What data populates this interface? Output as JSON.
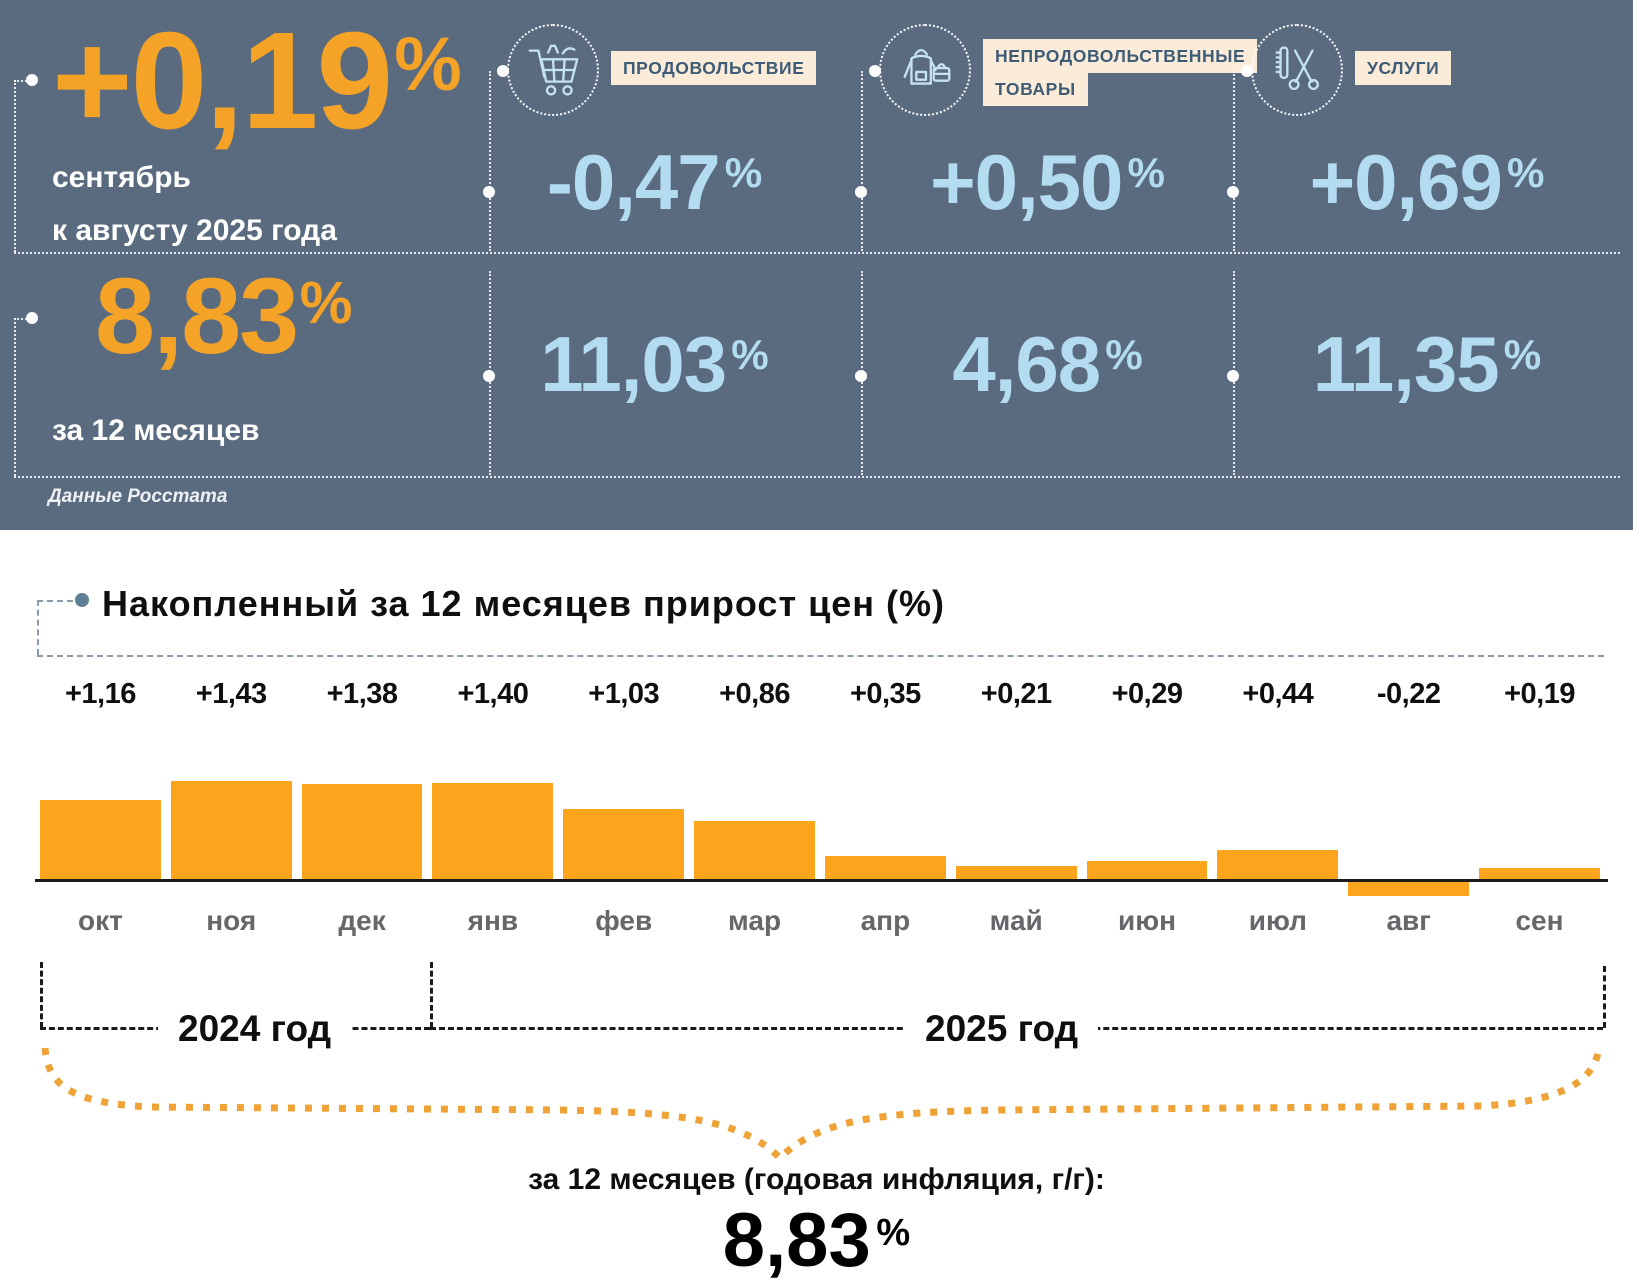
{
  "header": {
    "percent_sign": "%",
    "main_monthly_value": "+0,19",
    "main_monthly_label_line1": "сентябрь",
    "main_monthly_label_line2": "к августу 2025 года",
    "main_annual_value": "8,83",
    "main_annual_label": "за 12 месяцев",
    "source_note": "Данные Росстата",
    "categories": [
      {
        "label": "ПРОДОВОЛЬСТВИЕ",
        "icon": "shopping-cart-icon",
        "monthly_value": "-0,47",
        "annual_value": "11,03"
      },
      {
        "label": "НЕПРОДОВОЛЬСТВЕННЫЕ ТОВАРЫ",
        "icon": "clothing-and-bag-icon",
        "monthly_value": "+0,50",
        "annual_value": "4,68"
      },
      {
        "label": "УСЛУГИ",
        "icon": "comb-and-scissors-icon",
        "monthly_value": "+0,69",
        "annual_value": "11,35"
      }
    ],
    "colors": {
      "background": "#5A6B80",
      "accent_orange": "#F5A326",
      "value_blue": "#B4DCF0",
      "label_bg": "#FAECD9",
      "label_text": "#3F5C77"
    }
  },
  "chart_data": {
    "type": "bar",
    "title": "Накопленный за 12 месяцев прирост цен (%)",
    "categories": [
      "окт",
      "ноя",
      "дек",
      "янв",
      "фев",
      "мар",
      "апр",
      "май",
      "июн",
      "июл",
      "авг",
      "сен"
    ],
    "values": [
      1.16,
      1.43,
      1.38,
      1.4,
      1.03,
      0.86,
      0.35,
      0.21,
      0.29,
      0.44,
      -0.22,
      0.19
    ],
    "value_labels": [
      "+1,16",
      "+1,43",
      "+1,38",
      "+1,40",
      "+1,03",
      "+0,86",
      "+0,35",
      "+0,21",
      "+0,29",
      "+0,44",
      "-0,22",
      "+0,19"
    ],
    "bar_color": "#FBA41C",
    "grid": "off",
    "ylim": [
      -0.3,
      1.5
    ],
    "year_groups": [
      {
        "label": "2024 год",
        "from": "окт",
        "to": "дек"
      },
      {
        "label": "2025 год",
        "from": "янв",
        "to": "сен"
      }
    ],
    "annotation": {
      "label": "за 12 месяцев (годовая инфляция, г/г):",
      "value": "8,83",
      "percent_sign": "%"
    }
  }
}
